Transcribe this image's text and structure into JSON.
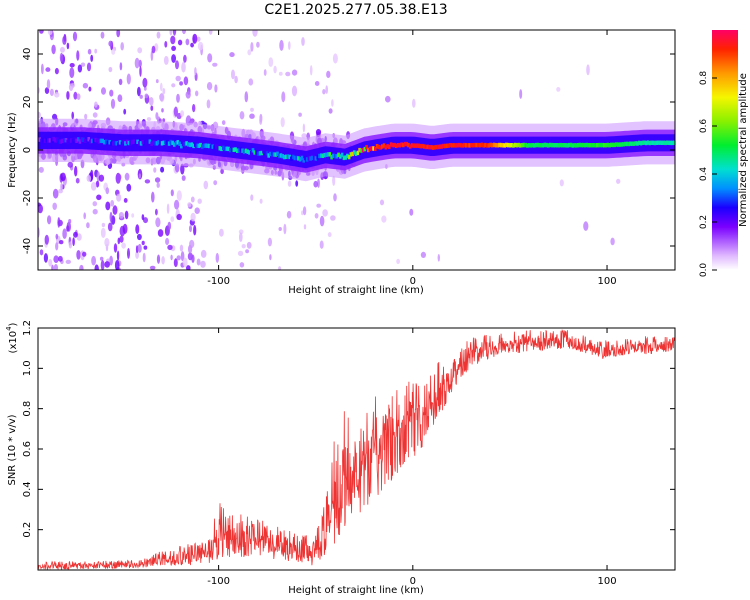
{
  "title": "C2E1.2025.277.05.38.E13",
  "chart_data": [
    {
      "type": "heatmap",
      "title": "C2E1.2025.277.05.38.E13",
      "xlabel": "Height of straight line (km)",
      "ylabel": "Frequency (Hz)",
      "xlim": [
        -193,
        135
      ],
      "ylim": [
        -50,
        50
      ],
      "xticks": [
        -100,
        0,
        100
      ],
      "xtick_labels": [
        "-100",
        "0",
        "100"
      ],
      "yticks": [
        -40,
        -20,
        0,
        20,
        40
      ],
      "ytick_labels": [
        "-40",
        "-20",
        "0",
        "20",
        "40"
      ],
      "colorbar": {
        "label": "Normalized spectral amplitude",
        "range": [
          0,
          1
        ],
        "ticks": [
          0.0,
          0.2,
          0.4,
          0.6,
          0.8
        ],
        "tick_labels": [
          "0.0",
          "0.2",
          "0.4",
          "0.6",
          "0.8"
        ]
      },
      "ridge": {
        "x": [
          -190,
          -170,
          -150,
          -130,
          -110,
          -90,
          -70,
          -55,
          -45,
          -35,
          -25,
          -18,
          -10,
          0,
          10,
          20,
          40,
          60,
          80,
          100,
          120,
          135
        ],
        "frequency": [
          4,
          4,
          3,
          3,
          2,
          0,
          -2,
          -4,
          -2,
          -3,
          0,
          1,
          2,
          2,
          1,
          2,
          2,
          2,
          2,
          2,
          3,
          3
        ],
        "amplitude": [
          0.2,
          0.25,
          0.3,
          0.35,
          0.4,
          0.4,
          0.4,
          0.35,
          0.45,
          0.5,
          0.9,
          0.95,
          0.95,
          0.95,
          0.95,
          0.95,
          0.9,
          0.5,
          0.5,
          0.55,
          0.45,
          0.45
        ]
      }
    },
    {
      "type": "line",
      "xlabel": "Height of straight line (km)",
      "ylabel": "SNR (10 * v/v)",
      "y_multiplier": "(x10",
      "y_multiplier_exp": "4",
      "y_multiplier_close": ")",
      "xlim": [
        -193,
        135
      ],
      "ylim": [
        0,
        1.2
      ],
      "xticks": [
        -100,
        0,
        100
      ],
      "xtick_labels": [
        "-100",
        "0",
        "100"
      ],
      "yticks": [
        0.2,
        0.4,
        0.6,
        0.8,
        1.0,
        1.2
      ],
      "ytick_labels": [
        "0.2",
        "0.4",
        "0.6",
        "0.8",
        "1.0",
        "1.2"
      ],
      "color": "#ee3333",
      "series": [
        {
          "name": "SNR",
          "envelope_x": [
            -193,
            -140,
            -130,
            -120,
            -105,
            -100,
            -90,
            -80,
            -70,
            -60,
            -50,
            -45,
            -40,
            -35,
            -30,
            -25,
            -20,
            -15,
            -10,
            -5,
            0,
            5,
            10,
            15,
            20,
            25,
            30,
            35,
            40,
            50,
            60,
            70,
            80,
            90,
            100,
            110,
            120,
            135
          ],
          "low": [
            0.0,
            0.01,
            0.02,
            0.02,
            0.03,
            0.05,
            0.06,
            0.06,
            0.05,
            0.04,
            0.02,
            0.06,
            0.1,
            0.2,
            0.25,
            0.3,
            0.35,
            0.4,
            0.45,
            0.5,
            0.55,
            0.6,
            0.7,
            0.78,
            0.88,
            0.95,
            1.0,
            1.03,
            1.05,
            1.07,
            1.08,
            1.09,
            1.1,
            1.07,
            1.04,
            1.06,
            1.07,
            1.08
          ],
          "high": [
            0.04,
            0.05,
            0.1,
            0.12,
            0.15,
            0.35,
            0.28,
            0.25,
            0.24,
            0.18,
            0.18,
            0.35,
            0.72,
            0.8,
            0.75,
            0.78,
            0.88,
            0.85,
            0.9,
            0.92,
            0.95,
            0.95,
            1.0,
            1.05,
            1.08,
            1.12,
            1.15,
            1.16,
            1.17,
            1.18,
            1.19,
            1.19,
            1.19,
            1.16,
            1.14,
            1.15,
            1.16,
            1.17
          ]
        }
      ]
    }
  ]
}
